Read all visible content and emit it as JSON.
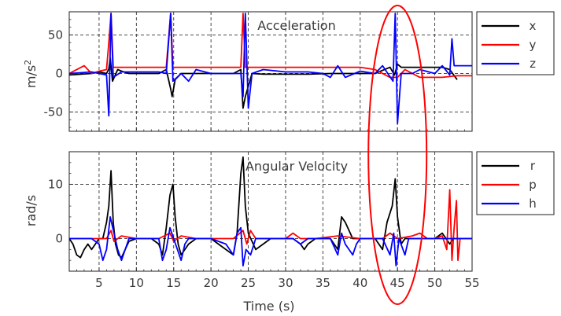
{
  "chart_data": [
    {
      "type": "line",
      "title": "Acceleration",
      "xlabel": "",
      "ylabel": "m/s",
      "ylabel_superscript": "2",
      "xlim": [
        1,
        55
      ],
      "ylim": [
        -75,
        80
      ],
      "xticks": [
        5,
        10,
        15,
        20,
        25,
        30,
        35,
        40,
        45,
        50,
        55
      ],
      "xtick_labels_visible": false,
      "yticks": [
        -50,
        0,
        50
      ],
      "ytick_labels": [
        "-50",
        "0",
        "50"
      ],
      "grid": true,
      "legend_position": "outside-right",
      "series": [
        {
          "name": "x",
          "color": "#000000",
          "points": [
            [
              1,
              -2
            ],
            [
              4,
              0
            ],
            [
              5,
              2
            ],
            [
              6,
              0
            ],
            [
              6.3,
              6
            ],
            [
              6.5,
              20
            ],
            [
              6.8,
              -10
            ],
            [
              7.5,
              5
            ],
            [
              8,
              3
            ],
            [
              9,
              0
            ],
            [
              13,
              0
            ],
            [
              14,
              5
            ],
            [
              14.6,
              -20
            ],
            [
              14.8,
              -30
            ],
            [
              15.2,
              -8
            ],
            [
              16,
              0
            ],
            [
              17,
              0
            ],
            [
              20,
              0
            ],
            [
              23,
              0
            ],
            [
              24,
              5
            ],
            [
              24.3,
              -45
            ],
            [
              24.6,
              -30
            ],
            [
              25.5,
              0
            ],
            [
              27,
              -1
            ],
            [
              30,
              -1
            ],
            [
              33,
              -1
            ],
            [
              36,
              0
            ],
            [
              37,
              0
            ],
            [
              40,
              0
            ],
            [
              42,
              0
            ],
            [
              44,
              8
            ],
            [
              44.6,
              -2
            ],
            [
              45,
              12
            ],
            [
              45.5,
              8
            ],
            [
              48,
              8
            ],
            [
              51,
              8
            ],
            [
              52,
              5
            ],
            [
              53,
              -8
            ]
          ]
        },
        {
          "name": "y",
          "color": "#ff0000",
          "points": [
            [
              1,
              0
            ],
            [
              3,
              10
            ],
            [
              4,
              0
            ],
            [
              5,
              3
            ],
            [
              6,
              5
            ],
            [
              6.3,
              40
            ],
            [
              6.6,
              78
            ],
            [
              6.9,
              8
            ],
            [
              8,
              8
            ],
            [
              13,
              8
            ],
            [
              14,
              8
            ],
            [
              14.6,
              78
            ],
            [
              14.9,
              8
            ],
            [
              16,
              8
            ],
            [
              20,
              8
            ],
            [
              23,
              8
            ],
            [
              24,
              8
            ],
            [
              24.3,
              78
            ],
            [
              24.6,
              8
            ],
            [
              26,
              8
            ],
            [
              30,
              8
            ],
            [
              33,
              8
            ],
            [
              36,
              8
            ],
            [
              37,
              8
            ],
            [
              40,
              8
            ],
            [
              42,
              5
            ],
            [
              44,
              -5
            ],
            [
              45,
              -5
            ],
            [
              46,
              5
            ],
            [
              48,
              -5
            ],
            [
              51,
              -5
            ],
            [
              53,
              -3
            ],
            [
              55,
              -3
            ]
          ]
        },
        {
          "name": "z",
          "color": "#0000ff",
          "points": [
            [
              1,
              0
            ],
            [
              4,
              2
            ],
            [
              5,
              0
            ],
            [
              6,
              -2
            ],
            [
              6.3,
              -55
            ],
            [
              6.6,
              78
            ],
            [
              6.9,
              -5
            ],
            [
              8,
              2
            ],
            [
              13,
              2
            ],
            [
              14,
              0
            ],
            [
              14.6,
              78
            ],
            [
              14.9,
              -10
            ],
            [
              16,
              0
            ],
            [
              17,
              -10
            ],
            [
              18,
              5
            ],
            [
              20,
              0
            ],
            [
              23,
              0
            ],
            [
              24,
              0
            ],
            [
              24.3,
              -30
            ],
            [
              24.6,
              78
            ],
            [
              25,
              -45
            ],
            [
              25.5,
              0
            ],
            [
              27,
              5
            ],
            [
              30,
              2
            ],
            [
              33,
              2
            ],
            [
              35,
              0
            ],
            [
              36,
              -5
            ],
            [
              37,
              10
            ],
            [
              38,
              -5
            ],
            [
              40,
              3
            ],
            [
              42,
              0
            ],
            [
              43,
              10
            ],
            [
              44.4,
              -10
            ],
            [
              44.7,
              78
            ],
            [
              45,
              -65
            ],
            [
              45.5,
              0
            ],
            [
              47,
              0
            ],
            [
              48,
              5
            ],
            [
              50,
              0
            ],
            [
              51,
              10
            ],
            [
              52,
              -2
            ],
            [
              52.3,
              45
            ],
            [
              52.6,
              10
            ],
            [
              53,
              10
            ],
            [
              55,
              10
            ]
          ]
        }
      ]
    },
    {
      "type": "line",
      "title": "Angular Velocity",
      "xlabel": "Time (s)",
      "ylabel": "rad/s",
      "xlim": [
        1,
        55
      ],
      "ylim": [
        -6,
        16
      ],
      "xticks": [
        5,
        10,
        15,
        20,
        25,
        30,
        35,
        40,
        45,
        50,
        55
      ],
      "xtick_labels": [
        "5",
        "10",
        "15",
        "20",
        "25",
        "30",
        "35",
        "40",
        "45",
        "50",
        "55"
      ],
      "yticks": [
        0,
        10
      ],
      "ytick_labels": [
        "0",
        "10"
      ],
      "grid": true,
      "legend_position": "outside-right",
      "series": [
        {
          "name": "r",
          "color": "#000000",
          "points": [
            [
              1,
              0
            ],
            [
              1.5,
              -1
            ],
            [
              2,
              -3
            ],
            [
              2.5,
              -3.5
            ],
            [
              3,
              -2
            ],
            [
              3.5,
              -1
            ],
            [
              4,
              -2
            ],
            [
              4.5,
              -1
            ],
            [
              5,
              0
            ],
            [
              5.5,
              0
            ],
            [
              6,
              3
            ],
            [
              6.3,
              6
            ],
            [
              6.6,
              12.5
            ],
            [
              6.9,
              3
            ],
            [
              7.2,
              -1
            ],
            [
              7.6,
              -3
            ],
            [
              8,
              -3.5
            ],
            [
              8.5,
              -2
            ],
            [
              9,
              -0.5
            ],
            [
              10,
              0
            ],
            [
              12,
              0
            ],
            [
              13,
              -1
            ],
            [
              13.5,
              -3
            ],
            [
              14,
              2
            ],
            [
              14.5,
              8
            ],
            [
              14.9,
              10
            ],
            [
              15.2,
              4
            ],
            [
              15.6,
              -1
            ],
            [
              16,
              -3
            ],
            [
              17,
              -1
            ],
            [
              18,
              0
            ],
            [
              20,
              0
            ],
            [
              21,
              -1
            ],
            [
              22,
              -2
            ],
            [
              23,
              -3
            ],
            [
              23.5,
              1
            ],
            [
              24,
              12
            ],
            [
              24.3,
              15
            ],
            [
              24.6,
              6
            ],
            [
              25,
              1
            ],
            [
              26,
              -2
            ],
            [
              27,
              -1
            ],
            [
              28,
              0
            ],
            [
              31,
              0
            ],
            [
              32,
              -1
            ],
            [
              32.5,
              -2
            ],
            [
              33,
              -1
            ],
            [
              34,
              0
            ],
            [
              36,
              0
            ],
            [
              37,
              -2
            ],
            [
              37.5,
              4
            ],
            [
              38,
              3
            ],
            [
              39,
              0
            ],
            [
              40,
              0
            ],
            [
              42,
              0
            ],
            [
              43,
              -2
            ],
            [
              43.6,
              3
            ],
            [
              44.3,
              6
            ],
            [
              44.7,
              11
            ],
            [
              45,
              4
            ],
            [
              45.5,
              -1
            ],
            [
              46,
              0
            ],
            [
              50,
              0
            ],
            [
              51,
              1
            ],
            [
              52,
              -1
            ],
            [
              52.5,
              0
            ],
            [
              55,
              0
            ]
          ]
        },
        {
          "name": "p",
          "color": "#ff0000",
          "points": [
            [
              1,
              0
            ],
            [
              4,
              0
            ],
            [
              5,
              0
            ],
            [
              6,
              0
            ],
            [
              6.6,
              1.5
            ],
            [
              7,
              -0.5
            ],
            [
              8,
              0.5
            ],
            [
              10,
              0
            ],
            [
              13,
              0
            ],
            [
              14.5,
              1
            ],
            [
              15,
              -0.5
            ],
            [
              16,
              0.5
            ],
            [
              18,
              0
            ],
            [
              20,
              0
            ],
            [
              23,
              0
            ],
            [
              24.3,
              1.5
            ],
            [
              24.8,
              -1
            ],
            [
              25.3,
              1.5
            ],
            [
              26,
              0
            ],
            [
              28,
              0
            ],
            [
              30,
              0
            ],
            [
              31,
              1
            ],
            [
              32,
              0
            ],
            [
              34,
              0
            ],
            [
              37,
              0.5
            ],
            [
              40,
              0
            ],
            [
              43,
              0
            ],
            [
              44,
              1
            ],
            [
              45,
              0
            ],
            [
              47,
              0.5
            ],
            [
              48,
              1
            ],
            [
              49,
              0
            ],
            [
              50,
              0
            ],
            [
              51,
              0.5
            ],
            [
              51.6,
              -2
            ],
            [
              52,
              9
            ],
            [
              52.3,
              -4
            ],
            [
              52.6,
              2
            ],
            [
              52.9,
              7
            ],
            [
              53.1,
              -4
            ],
            [
              53.4,
              0
            ],
            [
              55,
              0
            ]
          ]
        },
        {
          "name": "h",
          "color": "#0000ff",
          "points": [
            [
              1,
              0
            ],
            [
              4,
              0
            ],
            [
              5,
              -1
            ],
            [
              5.5,
              -4
            ],
            [
              6,
              -2
            ],
            [
              6.5,
              4
            ],
            [
              7,
              1
            ],
            [
              7.5,
              -2
            ],
            [
              8,
              -4
            ],
            [
              8.5,
              -2
            ],
            [
              9,
              0
            ],
            [
              12,
              0
            ],
            [
              13,
              0
            ],
            [
              13.5,
              -4
            ],
            [
              14,
              -2
            ],
            [
              14.5,
              2
            ],
            [
              15,
              0
            ],
            [
              15.5,
              -2
            ],
            [
              16,
              -4
            ],
            [
              16.5,
              -1
            ],
            [
              17,
              0
            ],
            [
              20,
              0
            ],
            [
              22,
              -1
            ],
            [
              23,
              -3
            ],
            [
              23.5,
              1
            ],
            [
              24,
              2
            ],
            [
              24.3,
              -5
            ],
            [
              24.7,
              -2
            ],
            [
              25.3,
              -3
            ],
            [
              26,
              0
            ],
            [
              29,
              0
            ],
            [
              31,
              0
            ],
            [
              32,
              -1
            ],
            [
              33,
              0
            ],
            [
              36,
              0
            ],
            [
              37,
              -3
            ],
            [
              37.5,
              1
            ],
            [
              38,
              -1
            ],
            [
              39,
              -3
            ],
            [
              39.5,
              -1
            ],
            [
              40,
              0
            ],
            [
              43,
              0
            ],
            [
              44,
              -3
            ],
            [
              44.5,
              1
            ],
            [
              44.8,
              -5
            ],
            [
              45.2,
              0
            ],
            [
              46,
              -3
            ],
            [
              46.5,
              0
            ],
            [
              50,
              0
            ],
            [
              55,
              0
            ]
          ]
        }
      ]
    }
  ],
  "annotation": {
    "shape": "ellipse",
    "color": "#ff0000",
    "around_x": 45
  }
}
